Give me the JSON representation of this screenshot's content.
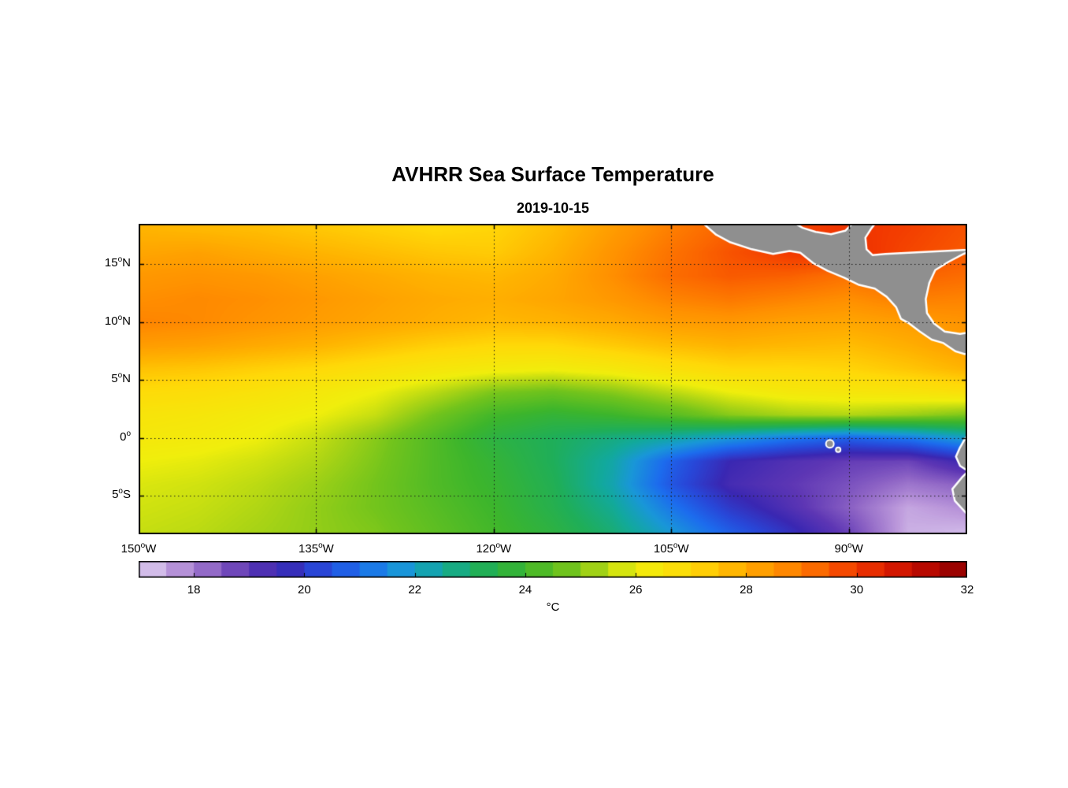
{
  "figure": {
    "title": "AVHRR Sea Surface Temperature",
    "subtitle": "2019-10-15"
  },
  "chart_data": {
    "type": "heatmap",
    "title": "AVHRR Sea Surface Temperature",
    "subtitle": "2019-10-15",
    "units": "°C",
    "lon_range": [
      -150,
      -80
    ],
    "lat_range": [
      -8.3,
      18.5
    ],
    "grid_lats": [
      18,
      16,
      14,
      12,
      10,
      8,
      6,
      4,
      2,
      0,
      -2,
      -4,
      -6,
      -8
    ],
    "grid_lons": [
      -150,
      -145,
      -140,
      -135,
      -130,
      -125,
      -120,
      -115,
      -110,
      -105,
      -100,
      -95,
      -90,
      -85,
      -80
    ],
    "sst": [
      [
        27.8,
        27.7,
        27.6,
        27.4,
        27.2,
        27.0,
        27.1,
        27.6,
        28.3,
        28.9,
        29.4,
        29.8,
        30.1,
        29.9,
        29.6
      ],
      [
        28.1,
        28.2,
        28.0,
        27.8,
        27.6,
        27.4,
        27.3,
        27.8,
        28.5,
        29.1,
        29.6,
        30.0,
        30.2,
        29.8,
        29.5
      ],
      [
        28.4,
        28.5,
        28.4,
        28.2,
        28.0,
        27.8,
        27.7,
        28.0,
        28.6,
        29.2,
        29.5,
        29.4,
        29.1,
        29.4,
        29.2
      ],
      [
        28.6,
        28.7,
        28.6,
        28.4,
        28.2,
        28.0,
        27.9,
        28.1,
        28.4,
        28.8,
        29.0,
        28.8,
        28.6,
        28.9,
        28.8
      ],
      [
        28.8,
        28.7,
        28.5,
        28.3,
        28.1,
        27.9,
        27.7,
        27.8,
        28.0,
        28.3,
        28.4,
        28.2,
        28.1,
        28.3,
        28.5
      ],
      [
        28.3,
        28.2,
        28.0,
        27.8,
        27.5,
        27.2,
        27.0,
        27.0,
        27.3,
        27.6,
        27.8,
        27.7,
        27.6,
        27.9,
        28.3
      ],
      [
        27.5,
        27.4,
        27.2,
        27.0,
        26.7,
        26.4,
        26.2,
        26.1,
        26.3,
        26.7,
        27.0,
        27.0,
        27.1,
        27.4,
        27.8
      ],
      [
        26.9,
        26.8,
        26.6,
        26.3,
        26.0,
        25.5,
        24.9,
        24.7,
        25.0,
        25.5,
        26.0,
        26.3,
        26.4,
        26.5,
        26.7
      ],
      [
        26.5,
        26.4,
        26.2,
        26.0,
        25.6,
        24.8,
        24.1,
        23.8,
        24.0,
        24.4,
        25.0,
        25.3,
        25.4,
        25.2,
        24.9
      ],
      [
        26.3,
        26.2,
        26.0,
        25.6,
        25.0,
        24.3,
        23.6,
        23.2,
        22.8,
        22.4,
        21.8,
        21.2,
        20.8,
        21.2,
        22.0
      ],
      [
        26.0,
        25.9,
        25.7,
        25.4,
        24.9,
        24.3,
        23.8,
        23.2,
        22.4,
        20.8,
        19.6,
        19.2,
        18.9,
        18.8,
        19.6
      ],
      [
        25.8,
        25.7,
        25.5,
        25.2,
        24.8,
        24.3,
        23.9,
        23.3,
        22.3,
        20.6,
        19.4,
        19.0,
        18.6,
        18.1,
        18.4
      ],
      [
        25.7,
        25.6,
        25.4,
        25.1,
        24.8,
        24.4,
        24.0,
        23.4,
        22.6,
        21.2,
        20.0,
        19.2,
        18.4,
        17.5,
        17.8
      ],
      [
        25.6,
        25.5,
        25.3,
        25.1,
        24.9,
        24.5,
        24.1,
        23.6,
        22.9,
        21.8,
        20.7,
        19.8,
        18.8,
        17.4,
        17.3
      ]
    ],
    "x_ticks": [
      {
        "text": "150°W",
        "deg": "150",
        "hemi": "W",
        "lon": -150
      },
      {
        "text": "135°W",
        "deg": "135",
        "hemi": "W",
        "lon": -135
      },
      {
        "text": "120°W",
        "deg": "120",
        "hemi": "W",
        "lon": -120
      },
      {
        "text": "105°W",
        "deg": "105",
        "hemi": "W",
        "lon": -105
      },
      {
        "text": "90°W",
        "deg": "90",
        "hemi": "W",
        "lon": -90
      }
    ],
    "y_ticks": [
      {
        "text": "15°N",
        "deg": "15",
        "hemi": "N",
        "lat": 15
      },
      {
        "text": "10°N",
        "deg": "10",
        "hemi": "N",
        "lat": 10
      },
      {
        "text": "5°N",
        "deg": "5",
        "hemi": "N",
        "lat": 5
      },
      {
        "text": "0°",
        "deg": "0",
        "hemi": "",
        "lat": 0
      },
      {
        "text": "5°S",
        "deg": "5",
        "hemi": "S",
        "lat": -5
      }
    ],
    "gridline_lons": [
      -135,
      -120,
      -105,
      -90
    ],
    "gridline_lats": [
      15,
      10,
      5,
      0,
      -5
    ],
    "grid_on": true,
    "colorbar": {
      "min": 17,
      "max": 32,
      "step": 0.5,
      "ticks": [
        18,
        20,
        22,
        24,
        26,
        28,
        30,
        32
      ],
      "label": "°C"
    },
    "colormap_stops": [
      [
        17.0,
        "#e0d3f2"
      ],
      [
        17.6,
        "#bf9ddd"
      ],
      [
        18.3,
        "#9066c6"
      ],
      [
        19.0,
        "#5d36b4"
      ],
      [
        19.6,
        "#3a27b2"
      ],
      [
        20.3,
        "#2847d8"
      ],
      [
        21.0,
        "#1c6cee"
      ],
      [
        21.8,
        "#1997d8"
      ],
      [
        22.5,
        "#12a99c"
      ],
      [
        23.2,
        "#1fae59"
      ],
      [
        24.0,
        "#3cb52c"
      ],
      [
        24.8,
        "#73c41c"
      ],
      [
        25.4,
        "#b1d614"
      ],
      [
        26.0,
        "#f0ee0c"
      ],
      [
        27.0,
        "#ffd908"
      ],
      [
        27.8,
        "#ffb300"
      ],
      [
        28.6,
        "#ff8f00"
      ],
      [
        29.3,
        "#fb6700"
      ],
      [
        30.0,
        "#f23800"
      ],
      [
        30.7,
        "#d61800"
      ],
      [
        31.4,
        "#b00500"
      ],
      [
        32.0,
        "#8c0000"
      ]
    ],
    "land": {
      "fill": "#8f8f8f",
      "outline": "#ffffff",
      "polygons": {
        "central_america": [
          [
            -102.4,
            18.62
          ],
          [
            -101.2,
            17.55
          ],
          [
            -100.0,
            16.9
          ],
          [
            -98.2,
            16.3
          ],
          [
            -96.4,
            15.9
          ],
          [
            -95.0,
            16.15
          ],
          [
            -94.1,
            16.0
          ],
          [
            -93.0,
            15.1
          ],
          [
            -91.8,
            14.45
          ],
          [
            -90.4,
            13.85
          ],
          [
            -89.2,
            13.25
          ],
          [
            -87.8,
            12.9
          ],
          [
            -86.8,
            12.2
          ],
          [
            -86.0,
            11.3
          ],
          [
            -85.6,
            10.3
          ],
          [
            -84.9,
            9.9
          ],
          [
            -84.0,
            9.2
          ],
          [
            -83.0,
            8.5
          ],
          [
            -82.0,
            8.2
          ],
          [
            -81.0,
            7.5
          ],
          [
            -80.2,
            7.25
          ],
          [
            -79.4,
            7.5
          ],
          [
            -79.4,
            9.2
          ],
          [
            -80.6,
            9.0
          ],
          [
            -81.9,
            9.2
          ],
          [
            -82.8,
            9.9
          ],
          [
            -83.4,
            10.8
          ],
          [
            -83.5,
            12.0
          ],
          [
            -83.2,
            13.4
          ],
          [
            -82.7,
            14.5
          ],
          [
            -81.6,
            15.2
          ],
          [
            -80.3,
            15.9
          ],
          [
            -79.3,
            16.3
          ],
          [
            -86.9,
            15.9
          ],
          [
            -88.0,
            15.8
          ],
          [
            -88.5,
            16.3
          ],
          [
            -88.6,
            17.3
          ],
          [
            -88.1,
            18.1
          ],
          [
            -87.7,
            18.62
          ],
          [
            -89.6,
            18.62
          ],
          [
            -90.3,
            17.9
          ],
          [
            -91.5,
            17.6
          ],
          [
            -92.8,
            17.8
          ],
          [
            -93.9,
            18.15
          ],
          [
            -94.7,
            18.62
          ]
        ],
        "south_america": [
          [
            -79.4,
            0.7
          ],
          [
            -80.15,
            0.0
          ],
          [
            -80.65,
            -0.9
          ],
          [
            -80.95,
            -1.6
          ],
          [
            -80.6,
            -2.4
          ],
          [
            -79.9,
            -2.85
          ],
          [
            -80.45,
            -3.4
          ],
          [
            -81.25,
            -4.4
          ],
          [
            -81.05,
            -5.4
          ],
          [
            -80.15,
            -6.4
          ],
          [
            -79.4,
            -7.2
          ],
          [
            -79.0,
            -8.5
          ],
          [
            -78.5,
            -8.5
          ],
          [
            -78.5,
            0.7
          ]
        ]
      },
      "islands": [
        {
          "name": "galapagos",
          "lon": -91.6,
          "lat": -0.5,
          "r": 5
        },
        {
          "name": "galapagos-small",
          "lon": -90.9,
          "lat": -1.0,
          "r": 3
        }
      ]
    }
  }
}
